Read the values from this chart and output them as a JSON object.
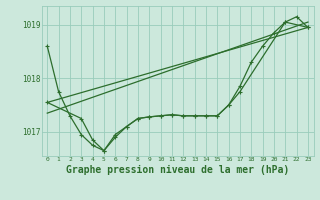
{
  "title": "Graphe pression niveau de la mer (hPa)",
  "bg_color": "#cce8dc",
  "grid_color": "#99ccbb",
  "line_color": "#2d6e2d",
  "ylim": [
    1016.55,
    1019.35
  ],
  "xlim": [
    -0.5,
    23.5
  ],
  "yticks": [
    1017,
    1018,
    1019
  ],
  "xticks": [
    0,
    1,
    2,
    3,
    4,
    5,
    6,
    7,
    8,
    9,
    10,
    11,
    12,
    13,
    14,
    15,
    16,
    17,
    18,
    19,
    20,
    21,
    22,
    23
  ],
  "series1_x": [
    0,
    1,
    2,
    3,
    4,
    5,
    6,
    7,
    8,
    9,
    10,
    11,
    12,
    13,
    14,
    15,
    16,
    17,
    18,
    19,
    20,
    21,
    22,
    23
  ],
  "series1_y": [
    1018.6,
    1017.75,
    1017.3,
    1016.95,
    1016.75,
    1016.65,
    1016.9,
    1017.1,
    1017.25,
    1017.28,
    1017.3,
    1017.32,
    1017.3,
    1017.3,
    1017.3,
    1017.3,
    1017.5,
    1017.85,
    1018.3,
    1018.6,
    1018.85,
    1019.05,
    1019.15,
    1018.95
  ],
  "series2_x": [
    0,
    3,
    4,
    5,
    6,
    7,
    8,
    9,
    10,
    11,
    12,
    13,
    14,
    15,
    16,
    17,
    21,
    23
  ],
  "series2_y": [
    1017.55,
    1017.25,
    1016.85,
    1016.65,
    1016.95,
    1017.1,
    1017.25,
    1017.28,
    1017.3,
    1017.32,
    1017.3,
    1017.3,
    1017.3,
    1017.3,
    1017.5,
    1017.75,
    1019.05,
    1018.95
  ],
  "series3_x": [
    0,
    23
  ],
  "series3_y": [
    1017.35,
    1019.05
  ],
  "series4_x": [
    0,
    23
  ],
  "series4_y": [
    1017.55,
    1018.95
  ],
  "font_size": 7,
  "marker_size": 3,
  "title_fontsize": 7
}
